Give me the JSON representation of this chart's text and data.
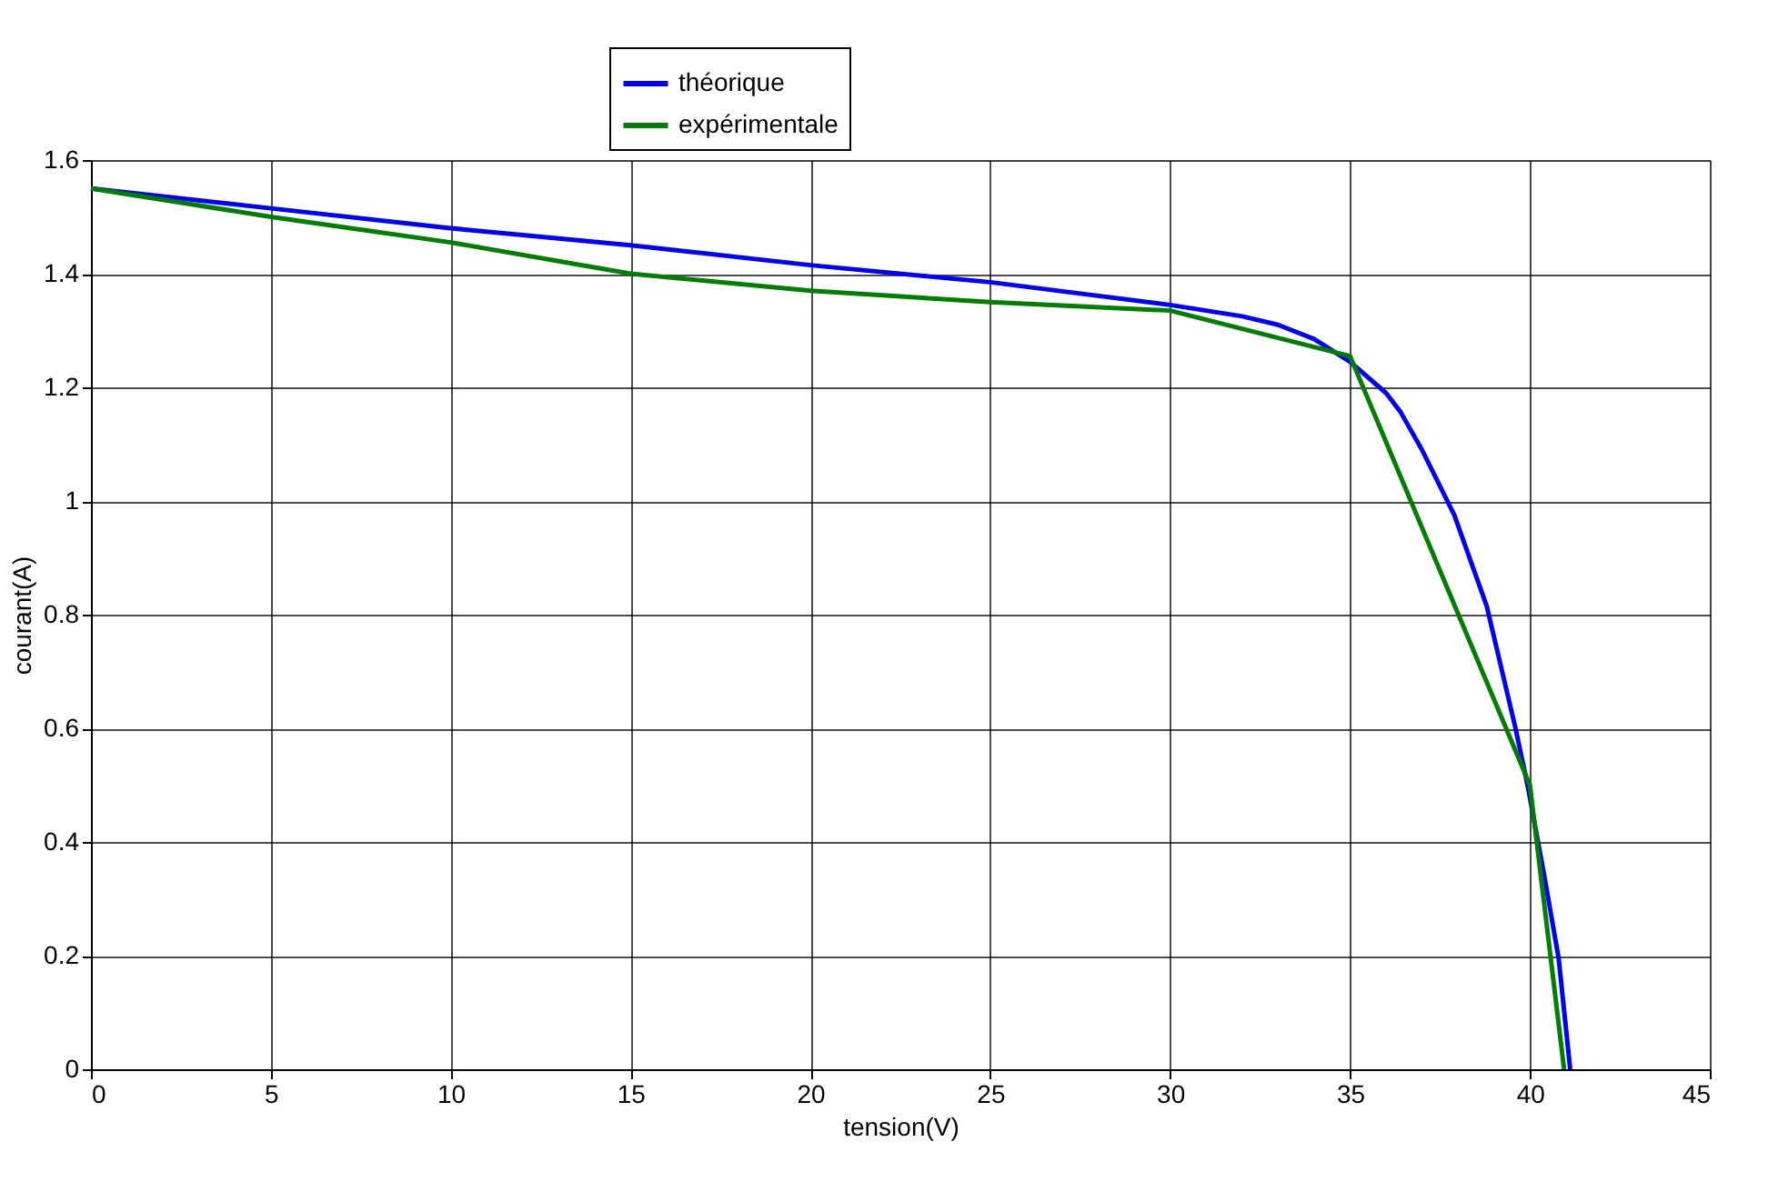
{
  "chart_data": {
    "type": "line",
    "xlabel": "tension(V)",
    "ylabel": "courant(A)",
    "xlim": [
      0,
      45
    ],
    "xticks": [
      0,
      5,
      10,
      15,
      20,
      25,
      30,
      35,
      40,
      45
    ],
    "ylim": [
      0,
      1.6
    ],
    "yticks": [
      0,
      0.2,
      0.4,
      0.6,
      0.8,
      1,
      1.2,
      1.4,
      1.6
    ],
    "grid": true,
    "legend": "top",
    "line_style": "solid",
    "series": [
      {
        "name": "théorique",
        "color": "#0000ff",
        "x": [
          0,
          5,
          10,
          15,
          20,
          25,
          30,
          32,
          33,
          34,
          35,
          36,
          36.4,
          37,
          37.9,
          38.8,
          39.6,
          39.95,
          40.4,
          40.8,
          41.12
        ],
        "values": [
          1.55,
          1.515,
          1.48,
          1.45,
          1.415,
          1.385,
          1.345,
          1.325,
          1.31,
          1.285,
          1.245,
          1.19,
          1.157,
          1.09,
          0.975,
          0.815,
          0.6,
          0.495,
          0.34,
          0.195,
          0
        ]
      },
      {
        "name": "expérimentale",
        "color": "#008000",
        "x": [
          0,
          5,
          10,
          15,
          20,
          25,
          30,
          35,
          40,
          40.95
        ],
        "values": [
          1.55,
          1.5,
          1.455,
          1.4,
          1.37,
          1.35,
          1.335,
          1.255,
          0.5,
          0
        ]
      }
    ]
  }
}
